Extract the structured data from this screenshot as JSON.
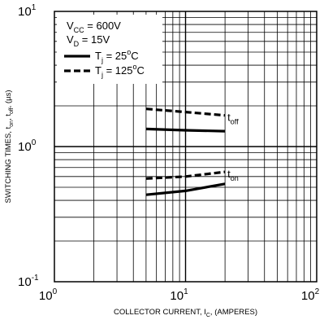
{
  "chart_data": {
    "type": "line",
    "xscale": "log",
    "yscale": "log",
    "xlim": [
      1,
      100
    ],
    "ylim": [
      0.1,
      10
    ],
    "grid": true,
    "xlabel": "COLLECTOR CURRENT, I",
    "xlabel_sub": "C",
    "xlabel_suffix": ", (AMPERES)",
    "ylabel": "SWITCHING TIMES, t",
    "ylabel_sub1": "on",
    "ylabel_mid": ", t",
    "ylabel_sub2": "off",
    "ylabel_suffix": ", (µs)",
    "x_ticks": [
      {
        "base": "10",
        "exp": "0"
      },
      {
        "base": "10",
        "exp": "1"
      },
      {
        "base": "10",
        "exp": "2"
      }
    ],
    "y_ticks": [
      {
        "base": "10",
        "exp": "-1"
      },
      {
        "base": "10",
        "exp": "0"
      },
      {
        "base": "10",
        "exp": "1"
      }
    ],
    "legend": {
      "conditions": [
        {
          "main": "V",
          "sub": "CC",
          "rest": " = 600V"
        },
        {
          "main": "V",
          "sub": "D",
          "rest": " = 15V"
        }
      ],
      "entries": [
        {
          "main": "T",
          "sub": "j",
          "rest": " = 25",
          "sup": "o",
          "unit": "C",
          "style": "solid"
        },
        {
          "main": "T",
          "sub": "j",
          "rest": " = 125",
          "sup": "o",
          "unit": "C",
          "style": "dashed"
        }
      ]
    },
    "series": [
      {
        "group": "off",
        "style": "dashed",
        "x": [
          5,
          10,
          20
        ],
        "y": [
          1.9,
          1.8,
          1.7
        ]
      },
      {
        "group": "off",
        "style": "solid",
        "x": [
          5,
          10,
          20
        ],
        "y": [
          1.35,
          1.32,
          1.3
        ]
      },
      {
        "group": "on",
        "style": "dashed",
        "x": [
          5,
          10,
          20
        ],
        "y": [
          0.58,
          0.6,
          0.65
        ]
      },
      {
        "group": "on",
        "style": "solid",
        "x": [
          5,
          10,
          20
        ],
        "y": [
          0.44,
          0.47,
          0.53
        ]
      }
    ],
    "annotations": [
      {
        "main": "t",
        "sub": "off",
        "x": 20,
        "y": 1.55
      },
      {
        "main": "t",
        "sub": "on",
        "x": 20,
        "y": 0.59
      }
    ]
  }
}
